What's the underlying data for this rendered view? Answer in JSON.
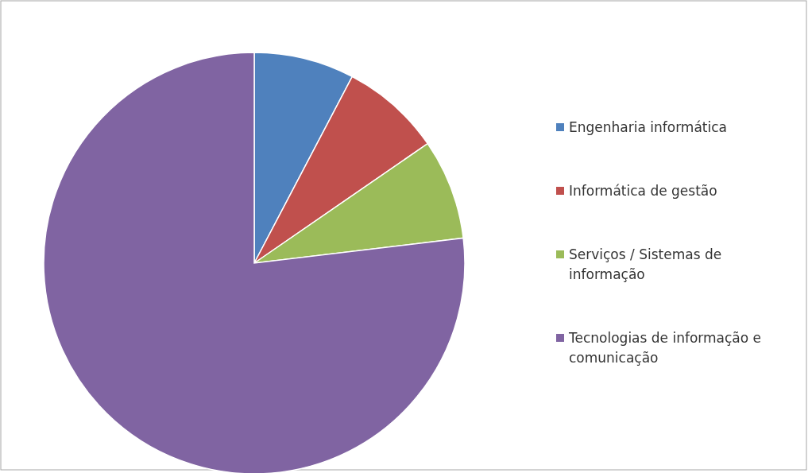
{
  "chart_data": {
    "type": "pie",
    "categories": [
      "Engenharia informática",
      "Informática de gestão",
      "Serviços / Sistemas de informação",
      "Tecnologias de informação e comunicação"
    ],
    "values": [
      7.7,
      7.7,
      7.7,
      76.9
    ],
    "colors": [
      "#4f81bd",
      "#c0504d",
      "#9bbb59",
      "#8064a2"
    ],
    "legend": "right"
  }
}
